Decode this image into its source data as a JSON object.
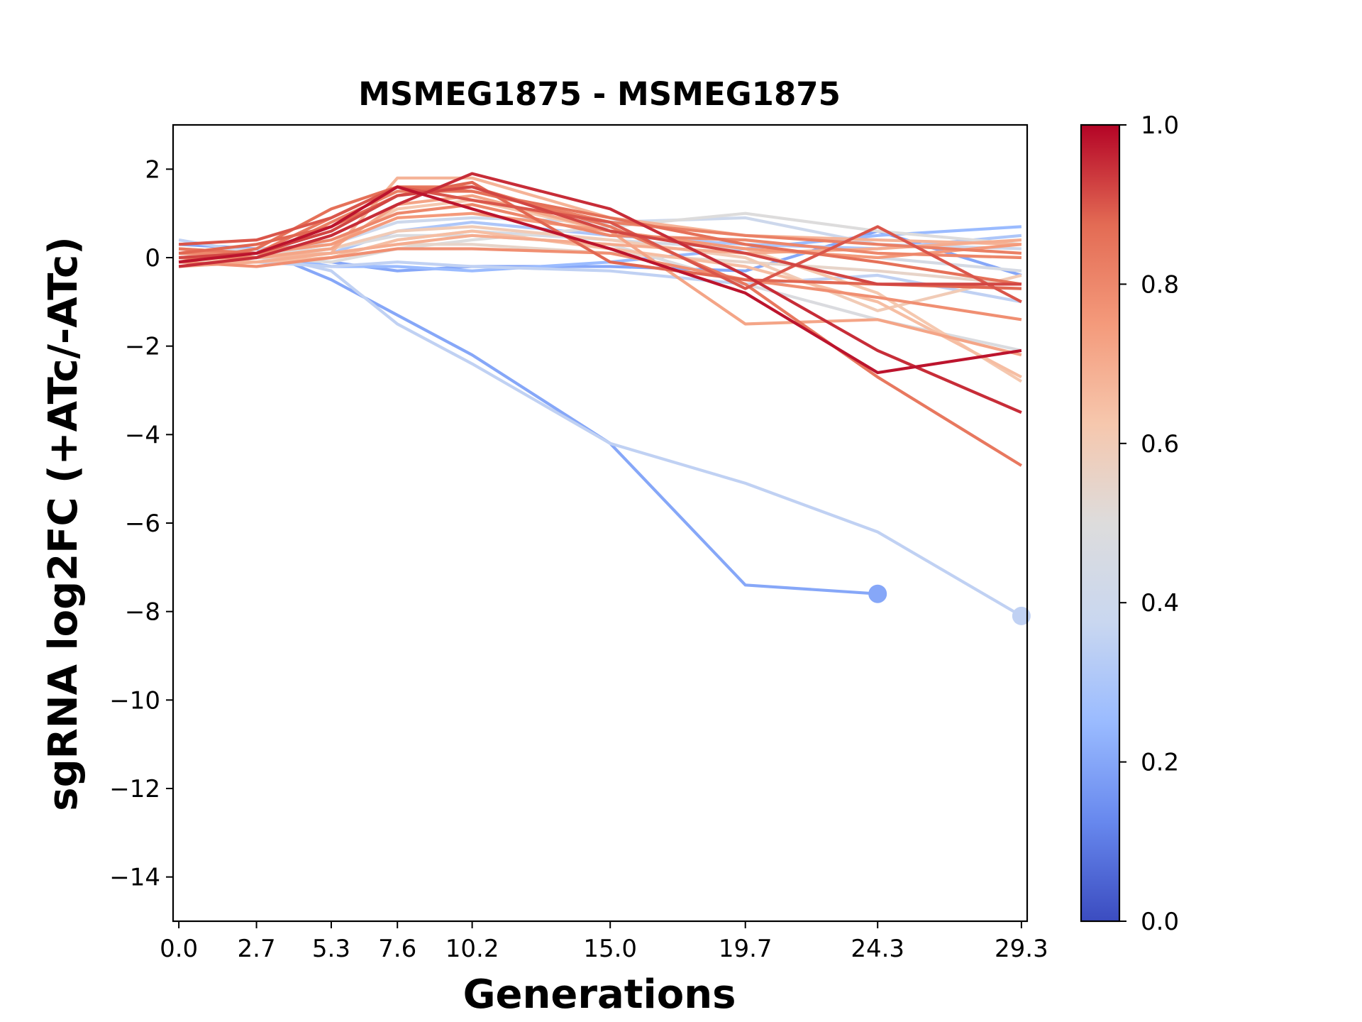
{
  "chart_data": {
    "type": "line",
    "title": "MSMEG1875 - MSMEG1875",
    "xlabel": "Generations",
    "ylabel": "sgRNA log2FC (+ATc/-ATc)",
    "x": [
      0.0,
      2.7,
      5.3,
      7.6,
      10.2,
      15.0,
      19.7,
      24.3,
      29.3
    ],
    "x_tick_labels": [
      "0.0",
      "2.7",
      "5.3",
      "7.6",
      "10.2",
      "15.0",
      "19.7",
      "24.3",
      "29.3"
    ],
    "xlim": [
      -0.2,
      29.5
    ],
    "ylim": [
      -15,
      3
    ],
    "y_ticks": [
      2,
      0,
      -2,
      -4,
      -6,
      -8,
      -10,
      -12,
      -14
    ],
    "y_tick_labels": [
      "2",
      "0",
      "−2",
      "−4",
      "−6",
      "−8",
      "−10",
      "−12",
      "−14"
    ],
    "grid": false,
    "colorbar": {
      "range": [
        0.0,
        1.0
      ],
      "cmap": "coolwarm",
      "stops": [
        "#3b4cc0",
        "#6788ee",
        "#9abbff",
        "#c9d7f0",
        "#dddcdc",
        "#f6c7ad",
        "#f49a7b",
        "#e36b54",
        "#b40426"
      ],
      "ticks": [
        0.0,
        0.2,
        0.4,
        0.6,
        0.8,
        1.0
      ],
      "tick_labels": [
        "0.0",
        "0.2",
        "0.4",
        "0.6",
        "0.8",
        "1.0"
      ]
    },
    "series": [
      {
        "c": 0.2,
        "values": [
          0.3,
          0.2,
          -0.5,
          -1.3,
          -2.2,
          -4.2,
          -7.4,
          -7.6,
          null
        ],
        "end_marker": true
      },
      {
        "c": 0.35,
        "values": [
          0.4,
          0.1,
          -0.3,
          -1.5,
          -2.4,
          -4.2,
          -5.1,
          -6.2,
          -8.1
        ],
        "end_marker": true
      },
      {
        "c": 0.2,
        "values": [
          0.1,
          0.0,
          -0.1,
          -0.3,
          -0.2,
          -0.2,
          -0.3,
          0.6,
          -0.4
        ]
      },
      {
        "c": 0.25,
        "values": [
          -0.1,
          0.1,
          -0.2,
          -0.2,
          -0.3,
          -0.1,
          0.2,
          0.5,
          0.7
        ]
      },
      {
        "c": 0.3,
        "values": [
          0.2,
          0.0,
          0.1,
          0.6,
          0.8,
          0.5,
          0.3,
          0.2,
          0.5
        ]
      },
      {
        "c": 0.35,
        "values": [
          0.0,
          -0.1,
          -0.2,
          -0.1,
          -0.2,
          -0.3,
          -0.6,
          -0.4,
          -1.0
        ]
      },
      {
        "c": 0.4,
        "values": [
          0.1,
          0.2,
          0.3,
          0.8,
          0.9,
          0.8,
          0.9,
          0.3,
          0.2
        ]
      },
      {
        "c": 0.45,
        "values": [
          -0.2,
          -0.1,
          0.0,
          0.4,
          0.6,
          0.4,
          0.2,
          0.0,
          -0.3
        ]
      },
      {
        "c": 0.48,
        "values": [
          0.0,
          0.1,
          0.2,
          0.5,
          0.5,
          0.3,
          -0.6,
          -1.4,
          -2.1
        ]
      },
      {
        "c": 0.5,
        "values": [
          0.1,
          0.0,
          -0.1,
          0.2,
          0.4,
          0.7,
          1.0,
          0.6,
          0.3
        ]
      },
      {
        "c": 0.55,
        "values": [
          0.0,
          0.1,
          0.1,
          0.3,
          0.3,
          0.1,
          -0.1,
          -0.3,
          -0.6
        ]
      },
      {
        "c": 0.6,
        "values": [
          -0.1,
          0.0,
          0.2,
          0.6,
          0.7,
          0.4,
          0.0,
          -1.2,
          -0.4
        ]
      },
      {
        "c": 0.62,
        "values": [
          0.2,
          0.1,
          0.3,
          1.1,
          1.3,
          0.6,
          0.2,
          -0.8,
          -2.8
        ]
      },
      {
        "c": 0.65,
        "values": [
          0.0,
          -0.1,
          0.0,
          0.4,
          0.6,
          0.2,
          -0.2,
          -1.0,
          -2.7
        ]
      },
      {
        "c": 0.68,
        "values": [
          0.1,
          0.0,
          0.1,
          1.8,
          1.8,
          0.9,
          0.5,
          0.4,
          0.3
        ]
      },
      {
        "c": 0.7,
        "values": [
          -0.2,
          -0.1,
          0.1,
          0.3,
          0.5,
          0.3,
          0.1,
          0.2,
          0.4
        ]
      },
      {
        "c": 0.72,
        "values": [
          0.2,
          0.0,
          0.2,
          1.2,
          1.4,
          0.6,
          -1.5,
          -1.4,
          -2.2
        ]
      },
      {
        "c": 0.75,
        "values": [
          0.0,
          0.1,
          0.3,
          0.9,
          1.0,
          0.6,
          0.2,
          0.0,
          0.3
        ]
      },
      {
        "c": 0.78,
        "values": [
          -0.1,
          -0.2,
          0.0,
          0.2,
          0.2,
          0.1,
          -0.5,
          -0.9,
          -1.4
        ]
      },
      {
        "c": 0.8,
        "values": [
          0.1,
          0.1,
          0.4,
          1.0,
          1.2,
          0.5,
          0.4,
          0.1,
          0.0
        ]
      },
      {
        "c": 0.82,
        "values": [
          0.0,
          0.0,
          0.8,
          1.5,
          1.5,
          0.8,
          0.5,
          0.3,
          0.1
        ]
      },
      {
        "c": 0.84,
        "values": [
          0.2,
          0.1,
          0.9,
          1.6,
          1.6,
          0.7,
          -0.6,
          -2.7,
          -4.7
        ]
      },
      {
        "c": 0.86,
        "values": [
          -0.1,
          0.2,
          1.1,
          1.6,
          1.5,
          0.9,
          0.3,
          -0.1,
          -0.6
        ]
      },
      {
        "c": 0.88,
        "values": [
          0.1,
          0.3,
          0.7,
          1.4,
          1.7,
          -0.1,
          -0.5,
          -0.6,
          -0.7
        ]
      },
      {
        "c": 0.9,
        "values": [
          0.3,
          0.4,
          0.9,
          1.6,
          1.3,
          0.8,
          -0.7,
          0.7,
          -1.0
        ]
      },
      {
        "c": 0.92,
        "values": [
          0.0,
          0.1,
          0.6,
          1.4,
          1.6,
          0.6,
          0.1,
          -0.6,
          -0.6
        ]
      },
      {
        "c": 0.95,
        "values": [
          -0.2,
          0.0,
          0.5,
          1.2,
          1.9,
          1.1,
          -0.4,
          -2.1,
          -3.5
        ]
      },
      {
        "c": 0.98,
        "values": [
          -0.1,
          0.1,
          0.7,
          1.6,
          1.1,
          0.2,
          -0.8,
          -2.6,
          -2.1
        ]
      }
    ]
  }
}
